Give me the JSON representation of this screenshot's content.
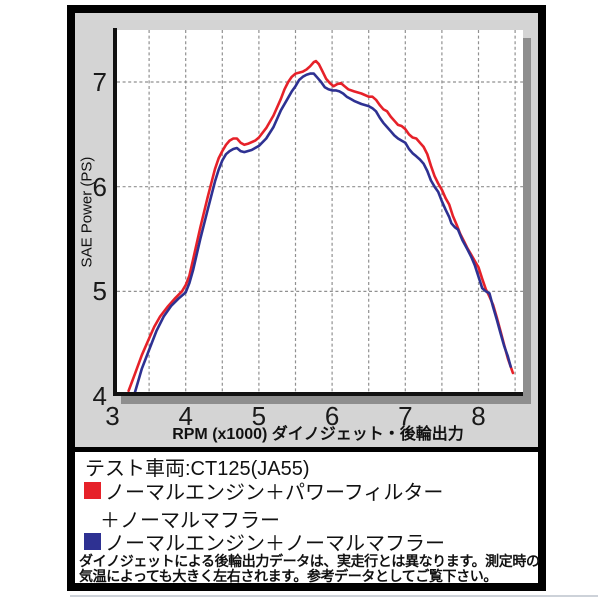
{
  "chart_data": {
    "type": "line",
    "title": "",
    "xlabel": "RPM (x1000) ダイノジェット・後輪出力",
    "ylabel": "SAE Power (PS)",
    "xlim": [
      3,
      8.6
    ],
    "ylim": [
      4,
      7.5
    ],
    "x_tick_labels": [
      "3",
      "4",
      "5",
      "6",
      "7",
      "8"
    ],
    "x_tick_values": [
      3,
      4,
      5,
      6,
      7,
      8
    ],
    "x_grid_step": 0.5,
    "x_grid_max": 8.5,
    "y_tick_labels": [
      "4",
      "5",
      "6",
      "7"
    ],
    "y_tick_values": [
      4,
      5,
      6,
      7
    ],
    "y_grid_values": [
      5,
      6,
      7
    ],
    "grid_style": "dashed",
    "legend_position": "below-chart",
    "series": [
      {
        "name": "ノーマルエンジン＋パワーフィルター＋ノーマルマフラー",
        "color": "#e62129",
        "points": [
          [
            3.22,
            4.05
          ],
          [
            3.3,
            4.2
          ],
          [
            3.4,
            4.39
          ],
          [
            3.5,
            4.55
          ],
          [
            3.57,
            4.66
          ],
          [
            3.65,
            4.76
          ],
          [
            3.75,
            4.85
          ],
          [
            3.85,
            4.93
          ],
          [
            3.95,
            5.0
          ],
          [
            4.0,
            5.06
          ],
          [
            4.05,
            5.15
          ],
          [
            4.1,
            5.3
          ],
          [
            4.2,
            5.61
          ],
          [
            4.3,
            5.9
          ],
          [
            4.4,
            6.17
          ],
          [
            4.45,
            6.27
          ],
          [
            4.5,
            6.34
          ],
          [
            4.55,
            6.4
          ],
          [
            4.6,
            6.44
          ],
          [
            4.65,
            6.46
          ],
          [
            4.7,
            6.46
          ],
          [
            4.75,
            6.42
          ],
          [
            4.8,
            6.4
          ],
          [
            4.85,
            6.41
          ],
          [
            4.95,
            6.44
          ],
          [
            5.0,
            6.47
          ],
          [
            5.1,
            6.56
          ],
          [
            5.2,
            6.68
          ],
          [
            5.3,
            6.84
          ],
          [
            5.35,
            6.93
          ],
          [
            5.4,
            7.0
          ],
          [
            5.45,
            7.05
          ],
          [
            5.5,
            7.08
          ],
          [
            5.55,
            7.09
          ],
          [
            5.6,
            7.1
          ],
          [
            5.65,
            7.12
          ],
          [
            5.7,
            7.15
          ],
          [
            5.75,
            7.19
          ],
          [
            5.78,
            7.2
          ],
          [
            5.82,
            7.17
          ],
          [
            5.87,
            7.1
          ],
          [
            5.92,
            7.03
          ],
          [
            5.97,
            6.99
          ],
          [
            6.02,
            6.96
          ],
          [
            6.07,
            6.98
          ],
          [
            6.12,
            6.99
          ],
          [
            6.17,
            6.96
          ],
          [
            6.22,
            6.93
          ],
          [
            6.3,
            6.91
          ],
          [
            6.4,
            6.89
          ],
          [
            6.5,
            6.86
          ],
          [
            6.55,
            6.86
          ],
          [
            6.6,
            6.83
          ],
          [
            6.65,
            6.78
          ],
          [
            6.7,
            6.74
          ],
          [
            6.75,
            6.72
          ],
          [
            6.8,
            6.67
          ],
          [
            6.85,
            6.63
          ],
          [
            6.9,
            6.59
          ],
          [
            6.95,
            6.58
          ],
          [
            7.0,
            6.55
          ],
          [
            7.05,
            6.5
          ],
          [
            7.1,
            6.47
          ],
          [
            7.15,
            6.46
          ],
          [
            7.2,
            6.42
          ],
          [
            7.25,
            6.38
          ],
          [
            7.3,
            6.31
          ],
          [
            7.35,
            6.2
          ],
          [
            7.4,
            6.1
          ],
          [
            7.45,
            6.03
          ],
          [
            7.5,
            5.97
          ],
          [
            7.55,
            5.89
          ],
          [
            7.6,
            5.83
          ],
          [
            7.65,
            5.72
          ],
          [
            7.7,
            5.64
          ],
          [
            7.75,
            5.55
          ],
          [
            7.8,
            5.48
          ],
          [
            7.85,
            5.41
          ],
          [
            7.9,
            5.35
          ],
          [
            7.95,
            5.29
          ],
          [
            8.0,
            5.23
          ],
          [
            8.05,
            5.12
          ],
          [
            8.1,
            5.02
          ],
          [
            8.15,
            4.95
          ],
          [
            8.2,
            4.87
          ],
          [
            8.25,
            4.75
          ],
          [
            8.3,
            4.62
          ],
          [
            8.35,
            4.49
          ],
          [
            8.4,
            4.36
          ],
          [
            8.47,
            4.22
          ]
        ]
      },
      {
        "name": "ノーマルエンジン＋ノーマルマフラー",
        "color": "#2e3192",
        "points": [
          [
            3.3,
            4.02
          ],
          [
            3.4,
            4.26
          ],
          [
            3.5,
            4.44
          ],
          [
            3.6,
            4.62
          ],
          [
            3.7,
            4.76
          ],
          [
            3.8,
            4.86
          ],
          [
            3.9,
            4.93
          ],
          [
            4.0,
            4.99
          ],
          [
            4.05,
            5.08
          ],
          [
            4.1,
            5.2
          ],
          [
            4.2,
            5.5
          ],
          [
            4.3,
            5.78
          ],
          [
            4.4,
            6.05
          ],
          [
            4.45,
            6.16
          ],
          [
            4.5,
            6.25
          ],
          [
            4.55,
            6.31
          ],
          [
            4.6,
            6.34
          ],
          [
            4.65,
            6.36
          ],
          [
            4.7,
            6.37
          ],
          [
            4.75,
            6.34
          ],
          [
            4.8,
            6.33
          ],
          [
            4.9,
            6.35
          ],
          [
            5.0,
            6.39
          ],
          [
            5.1,
            6.46
          ],
          [
            5.2,
            6.57
          ],
          [
            5.3,
            6.73
          ],
          [
            5.4,
            6.85
          ],
          [
            5.45,
            6.91
          ],
          [
            5.5,
            6.96
          ],
          [
            5.55,
            7.02
          ],
          [
            5.6,
            7.05
          ],
          [
            5.65,
            7.07
          ],
          [
            5.7,
            7.08
          ],
          [
            5.75,
            7.08
          ],
          [
            5.8,
            7.04
          ],
          [
            5.85,
            7.0
          ],
          [
            5.9,
            6.95
          ],
          [
            5.95,
            6.93
          ],
          [
            6.0,
            6.92
          ],
          [
            6.05,
            6.92
          ],
          [
            6.1,
            6.91
          ],
          [
            6.15,
            6.89
          ],
          [
            6.2,
            6.86
          ],
          [
            6.25,
            6.84
          ],
          [
            6.3,
            6.82
          ],
          [
            6.4,
            6.79
          ],
          [
            6.5,
            6.77
          ],
          [
            6.55,
            6.75
          ],
          [
            6.6,
            6.72
          ],
          [
            6.65,
            6.66
          ],
          [
            6.7,
            6.61
          ],
          [
            6.75,
            6.57
          ],
          [
            6.8,
            6.53
          ],
          [
            6.85,
            6.49
          ],
          [
            6.9,
            6.46
          ],
          [
            6.95,
            6.44
          ],
          [
            7.0,
            6.42
          ],
          [
            7.05,
            6.36
          ],
          [
            7.1,
            6.32
          ],
          [
            7.15,
            6.29
          ],
          [
            7.2,
            6.26
          ],
          [
            7.25,
            6.22
          ],
          [
            7.3,
            6.15
          ],
          [
            7.35,
            6.06
          ],
          [
            7.4,
            6.0
          ],
          [
            7.45,
            5.95
          ],
          [
            7.5,
            5.86
          ],
          [
            7.55,
            5.78
          ],
          [
            7.6,
            5.71
          ],
          [
            7.63,
            5.65
          ],
          [
            7.68,
            5.61
          ],
          [
            7.72,
            5.59
          ],
          [
            7.78,
            5.49
          ],
          [
            7.85,
            5.4
          ],
          [
            7.9,
            5.33
          ],
          [
            7.95,
            5.25
          ],
          [
            8.0,
            5.14
          ],
          [
            8.05,
            5.03
          ],
          [
            8.1,
            5.0
          ],
          [
            8.15,
            4.98
          ],
          [
            8.2,
            4.85
          ],
          [
            8.25,
            4.73
          ],
          [
            8.3,
            4.6
          ],
          [
            8.35,
            4.48
          ],
          [
            8.4,
            4.38
          ],
          [
            8.44,
            4.28
          ]
        ]
      }
    ]
  },
  "legend": {
    "test_vehicle_label": "テスト車両:CT125(JA55)",
    "items": [
      {
        "swatch_color": "#e62129",
        "line1": "ノーマルエンジン＋パワーフィルター",
        "line2": "＋ノーマルマフラー"
      },
      {
        "swatch_color": "#2e3192",
        "line1": "ノーマルエンジン＋ノーマルマフラー",
        "line2": ""
      }
    ],
    "note": "ダイノジェットによる後輪出力データは、実走行とは異なります。測定時の気温によっても大きく左右されます。参考データとしてご覧下さい。"
  },
  "colors": {
    "chart_background": "#d4d4d4",
    "plot_background": "#ffffff",
    "plot_shadow": "#8e8e8e",
    "grid": "#909090",
    "axis": "#111111",
    "frame": "#000000",
    "text": "#1a1a1a"
  }
}
